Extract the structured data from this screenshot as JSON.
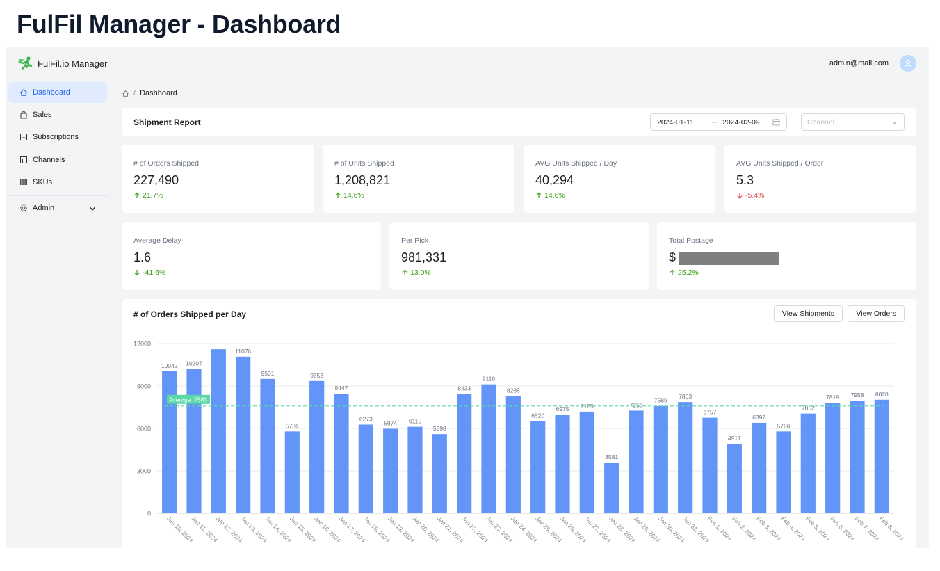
{
  "page_title": "FulFil Manager - Dashboard",
  "topbar": {
    "app_name": "FulFil.io Manager",
    "user_email": "admin@mail.com"
  },
  "sidebar": {
    "items": [
      {
        "label": "Dashboard",
        "icon": "home-icon",
        "active": true
      },
      {
        "label": "Sales",
        "icon": "shopping-bag-icon"
      },
      {
        "label": "Subscriptions",
        "icon": "list-icon"
      },
      {
        "label": "Channels",
        "icon": "store-icon"
      },
      {
        "label": "SKUs",
        "icon": "barcode-icon"
      },
      {
        "label": "Admin",
        "icon": "gear-icon",
        "expandable": true
      }
    ]
  },
  "breadcrumb": {
    "current": "Dashboard"
  },
  "report": {
    "title": "Shipment Report",
    "date_start": "2024-01-11",
    "date_end": "2024-02-09",
    "channel_placeholder": "Channel"
  },
  "stats": [
    {
      "label": "# of Orders Shipped",
      "value": "227,490",
      "change": "21.7%",
      "direction": "up"
    },
    {
      "label": "# of Units Shipped",
      "value": "1,208,821",
      "change": "14.6%",
      "direction": "up"
    },
    {
      "label": "AVG Units Shipped / Day",
      "value": "40,294",
      "change": "14.6%",
      "direction": "up"
    },
    {
      "label": "AVG Units Shipped / Order",
      "value": "5.3",
      "change": "-5.4%",
      "direction": "down"
    },
    {
      "label": "Average Delay",
      "value": "1.6",
      "change": "-41.6%",
      "direction": "down-good"
    },
    {
      "label": "Per Pick",
      "value": "981,331",
      "change": "13.0%",
      "direction": "up"
    },
    {
      "label": "Total Postage",
      "value": "$",
      "change": "25.2%",
      "direction": "up",
      "redacted": true
    }
  ],
  "chart_section": {
    "title": "# of Orders Shipped per Day",
    "view_shipments": "View Shipments",
    "view_orders": "View Orders"
  },
  "chart_data": {
    "type": "bar",
    "categories": [
      "Jan 10, 2024",
      "Jan 11, 2024",
      "Jan 12, 2024",
      "Jan 13, 2024",
      "Jan 14, 2024",
      "Jan 15, 2024",
      "Jan 16, 2024",
      "Jan 17, 2024",
      "Jan 18, 2024",
      "Jan 19, 2024",
      "Jan 20, 2024",
      "Jan 21, 2024",
      "Jan 22, 2024",
      "Jan 23, 2024",
      "Jan 24, 2024",
      "Jan 25, 2024",
      "Jan 26, 2024",
      "Jan 27, 2024",
      "Jan 28, 2024",
      "Jan 29, 2024",
      "Jan 30, 2024",
      "Jan 31, 2024",
      "Feb 1, 2024",
      "Feb 2, 2024",
      "Feb 3, 2024",
      "Feb 4, 2024",
      "Feb 5, 2024",
      "Feb 6, 2024",
      "Feb 7, 2024",
      "Feb 8, 2024"
    ],
    "values": [
      10042,
      10207,
      11600,
      11076,
      9501,
      5786,
      9353,
      8447,
      6273,
      5974,
      6115,
      5598,
      8433,
      9116,
      8288,
      6520,
      6975,
      7185,
      3581,
      7256,
      7589,
      7863,
      6757,
      4917,
      6397,
      5786,
      7052,
      7819,
      7958,
      8028
    ],
    "data_labels": [
      "10042",
      "10207",
      "",
      "11076",
      "9501",
      "5786",
      "9353",
      "8447",
      "6273",
      "5974",
      "6115",
      "5598",
      "8433",
      "9116",
      "8288",
      "6520",
      "6975",
      "7185",
      "3581",
      "7256",
      "7589",
      "7863",
      "6757",
      "4917",
      "6397",
      "5786",
      "7052",
      "7819",
      "7958",
      "8028"
    ],
    "y_ticks": [
      "0",
      "3000",
      "6000",
      "9000",
      "12000"
    ],
    "ylim": [
      0,
      12000
    ],
    "average_value": 7583,
    "average_label": "Average: 7583",
    "bar_color": "#6395f9",
    "average_color": "#5ad8a6",
    "grid": true
  }
}
